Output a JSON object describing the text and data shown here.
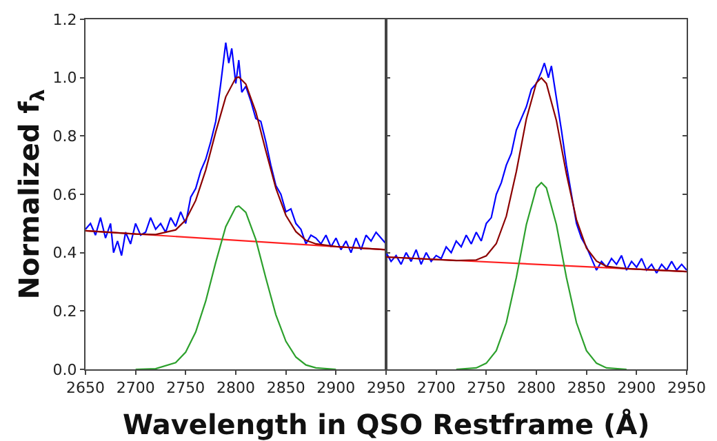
{
  "chart_data": [
    {
      "type": "line",
      "ylabel": "Normalized f$_{λ}$",
      "xlabel": "Wavelength in QSO Restframe (Å)",
      "xlim": [
        2650,
        2950
      ],
      "ylim": [
        0,
        1.2
      ],
      "xticks": [
        2650,
        2700,
        2750,
        2800,
        2850,
        2900,
        2950
      ],
      "yticks": [
        {
          "value": 0,
          "label": "0.0"
        },
        {
          "value": 0.2,
          "label": "0.2"
        },
        {
          "value": 0.4,
          "label": "0.4"
        },
        {
          "value": 0.6,
          "label": "0.6"
        },
        {
          "value": 0.8,
          "label": "0.8"
        },
        {
          "value": 1.0,
          "label": "1.0"
        },
        {
          "value": 1.2,
          "label": "1.2"
        }
      ],
      "marker": "none",
      "line_style": "solid",
      "series": [
        {
          "color": "#0000ff",
          "x": [
            2650,
            2655,
            2660,
            2665,
            2670,
            2675,
            2678,
            2682,
            2686,
            2690,
            2695,
            2700,
            2705,
            2710,
            2715,
            2720,
            2725,
            2730,
            2735,
            2740,
            2745,
            2750,
            2755,
            2760,
            2765,
            2770,
            2775,
            2780,
            2785,
            2790,
            2793,
            2796,
            2800,
            2803,
            2806,
            2810,
            2815,
            2820,
            2825,
            2830,
            2835,
            2840,
            2845,
            2850,
            2855,
            2860,
            2865,
            2870,
            2875,
            2880,
            2885,
            2890,
            2895,
            2900,
            2905,
            2910,
            2915,
            2920,
            2925,
            2930,
            2935,
            2940,
            2945,
            2950
          ],
          "values": [
            0.48,
            0.5,
            0.46,
            0.52,
            0.45,
            0.5,
            0.4,
            0.44,
            0.39,
            0.47,
            0.43,
            0.5,
            0.46,
            0.47,
            0.52,
            0.48,
            0.5,
            0.47,
            0.52,
            0.49,
            0.54,
            0.5,
            0.59,
            0.62,
            0.68,
            0.72,
            0.78,
            0.85,
            0.98,
            1.12,
            1.05,
            1.1,
            0.98,
            1.06,
            0.95,
            0.97,
            0.92,
            0.86,
            0.85,
            0.78,
            0.7,
            0.63,
            0.6,
            0.54,
            0.55,
            0.5,
            0.48,
            0.43,
            0.46,
            0.45,
            0.43,
            0.46,
            0.42,
            0.45,
            0.41,
            0.44,
            0.4,
            0.45,
            0.41,
            0.46,
            0.44,
            0.47,
            0.45,
            0.43
          ]
        },
        {
          "color": "#ff2020",
          "x": [
            2650,
            2950
          ],
          "values": [
            0.475,
            0.41
          ]
        },
        {
          "color": "#2ca02c",
          "x": [
            2700,
            2720,
            2740,
            2750,
            2760,
            2770,
            2780,
            2790,
            2800,
            2803,
            2810,
            2820,
            2830,
            2840,
            2850,
            2860,
            2870,
            2880,
            2900
          ],
          "values": [
            0.0,
            0.002,
            0.023,
            0.059,
            0.128,
            0.234,
            0.367,
            0.489,
            0.556,
            0.56,
            0.538,
            0.445,
            0.313,
            0.187,
            0.096,
            0.042,
            0.015,
            0.005,
            0.0
          ]
        },
        {
          "color": "#8b0000",
          "x": [
            2650,
            2700,
            2720,
            2740,
            2750,
            2760,
            2770,
            2780,
            2790,
            2800,
            2803,
            2810,
            2820,
            2830,
            2840,
            2850,
            2860,
            2870,
            2880,
            2900,
            2950
          ],
          "values": [
            0.475,
            0.464,
            0.462,
            0.478,
            0.512,
            0.579,
            0.683,
            0.814,
            0.934,
            0.999,
            1.002,
            0.978,
            0.883,
            0.749,
            0.621,
            0.528,
            0.472,
            0.442,
            0.43,
            0.421,
            0.41
          ]
        }
      ]
    },
    {
      "type": "line",
      "xlim": [
        2650,
        2950
      ],
      "ylim": [
        0,
        1.2
      ],
      "tick_labels": "x",
      "xticks": [
        2700,
        2750,
        2800,
        2850,
        2900,
        2950
      ],
      "yticks": [
        {
          "value": 0,
          "label": null
        },
        {
          "value": 0.2,
          "label": null
        },
        {
          "value": 0.4,
          "label": null
        },
        {
          "value": 0.6,
          "label": null
        },
        {
          "value": 0.8,
          "label": null
        },
        {
          "value": 1.0,
          "label": null
        },
        {
          "value": 1.2,
          "label": null
        }
      ],
      "marker": "none",
      "line_style": "solid",
      "series": [
        {
          "color": "#0000ff",
          "x": [
            2650,
            2655,
            2660,
            2665,
            2670,
            2675,
            2680,
            2685,
            2690,
            2695,
            2700,
            2705,
            2710,
            2715,
            2720,
            2725,
            2730,
            2735,
            2740,
            2745,
            2750,
            2755,
            2760,
            2765,
            2770,
            2775,
            2780,
            2785,
            2790,
            2795,
            2800,
            2805,
            2808,
            2812,
            2815,
            2820,
            2825,
            2830,
            2835,
            2840,
            2845,
            2850,
            2855,
            2860,
            2865,
            2870,
            2875,
            2880,
            2885,
            2890,
            2895,
            2900,
            2905,
            2910,
            2915,
            2920,
            2925,
            2930,
            2935,
            2940,
            2945,
            2950
          ],
          "values": [
            0.4,
            0.37,
            0.39,
            0.36,
            0.4,
            0.37,
            0.41,
            0.36,
            0.4,
            0.37,
            0.39,
            0.38,
            0.42,
            0.4,
            0.44,
            0.42,
            0.46,
            0.43,
            0.47,
            0.44,
            0.5,
            0.52,
            0.6,
            0.64,
            0.7,
            0.74,
            0.82,
            0.86,
            0.9,
            0.96,
            0.98,
            1.02,
            1.05,
            1.0,
            1.04,
            0.93,
            0.82,
            0.7,
            0.6,
            0.5,
            0.45,
            0.42,
            0.38,
            0.34,
            0.37,
            0.35,
            0.38,
            0.36,
            0.39,
            0.34,
            0.37,
            0.35,
            0.38,
            0.34,
            0.36,
            0.33,
            0.36,
            0.34,
            0.37,
            0.34,
            0.36,
            0.34
          ]
        },
        {
          "color": "#ff2020",
          "x": [
            2650,
            2950
          ],
          "values": [
            0.385,
            0.335
          ]
        },
        {
          "color": "#2ca02c",
          "x": [
            2720,
            2740,
            2750,
            2760,
            2770,
            2780,
            2790,
            2800,
            2805,
            2810,
            2820,
            2830,
            2840,
            2850,
            2860,
            2870,
            2890
          ],
          "values": [
            0.0,
            0.005,
            0.021,
            0.064,
            0.16,
            0.315,
            0.496,
            0.622,
            0.64,
            0.622,
            0.496,
            0.315,
            0.16,
            0.064,
            0.021,
            0.005,
            0.0
          ]
        },
        {
          "color": "#8b0000",
          "x": [
            2650,
            2720,
            2740,
            2750,
            2760,
            2770,
            2780,
            2790,
            2800,
            2805,
            2810,
            2820,
            2830,
            2840,
            2850,
            2860,
            2870,
            2890,
            2950
          ],
          "values": [
            0.385,
            0.373,
            0.375,
            0.389,
            0.431,
            0.525,
            0.678,
            0.858,
            0.982,
            0.999,
            0.98,
            0.853,
            0.67,
            0.513,
            0.416,
            0.371,
            0.353,
            0.345,
            0.335
          ]
        }
      ]
    }
  ]
}
